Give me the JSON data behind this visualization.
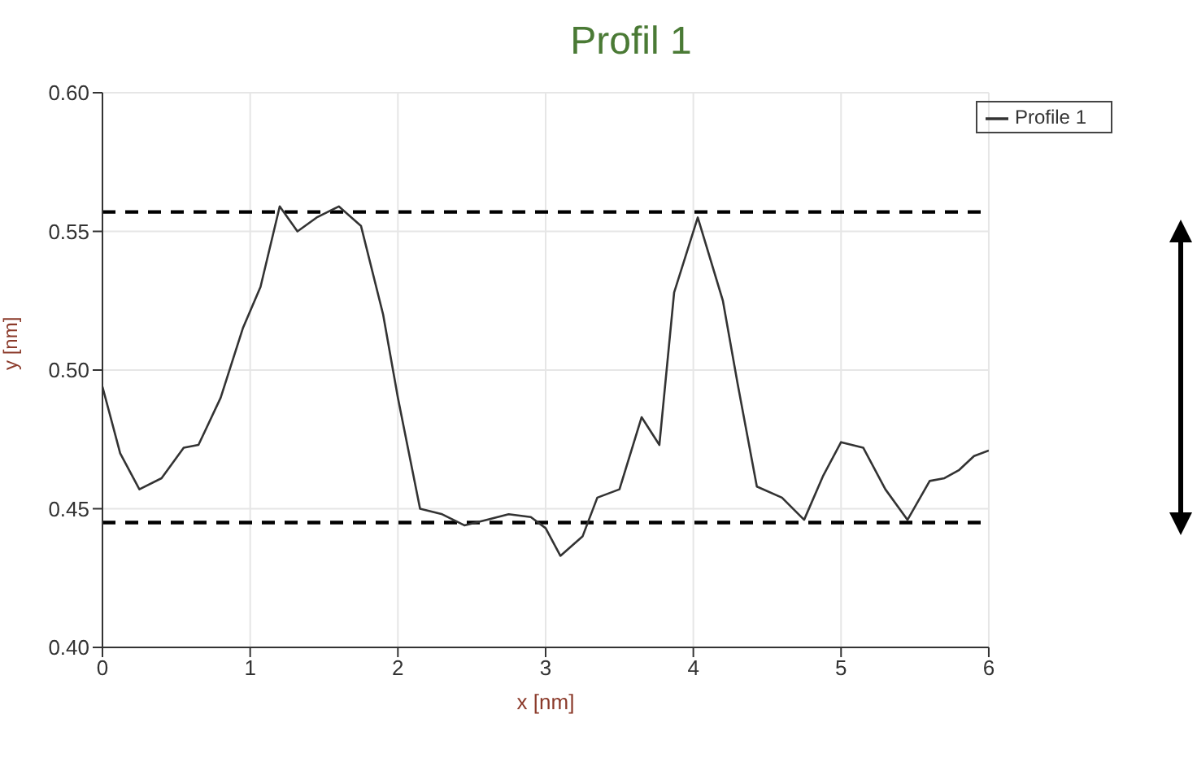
{
  "chart_data": {
    "type": "line",
    "title": "Profil 1",
    "xlabel": "x [nm]",
    "ylabel": "y [nm]",
    "x": [
      0,
      0.12,
      0.25,
      0.4,
      0.55,
      0.65,
      0.8,
      0.95,
      1.07,
      1.2,
      1.32,
      1.45,
      1.6,
      1.75,
      1.9,
      2.0,
      2.15,
      2.3,
      2.45,
      2.6,
      2.75,
      2.9,
      3.0,
      3.1,
      3.25,
      3.35,
      3.5,
      3.65,
      3.77,
      3.87,
      4.03,
      4.2,
      4.3,
      4.43,
      4.6,
      4.75,
      4.88,
      5.0,
      5.15,
      5.3,
      5.45,
      5.6,
      5.7,
      5.8,
      5.9,
      6.0
    ],
    "series": [
      {
        "name": "Profile 1",
        "color": "#333333",
        "values": [
          0.494,
          0.47,
          0.457,
          0.461,
          0.472,
          0.473,
          0.49,
          0.515,
          0.53,
          0.559,
          0.55,
          0.555,
          0.559,
          0.552,
          0.52,
          0.49,
          0.45,
          0.448,
          0.444,
          0.446,
          0.448,
          0.447,
          0.443,
          0.433,
          0.44,
          0.454,
          0.457,
          0.483,
          0.473,
          0.528,
          0.555,
          0.525,
          0.495,
          0.458,
          0.454,
          0.446,
          0.462,
          0.474,
          0.472,
          0.457,
          0.446,
          0.46,
          0.461,
          0.464,
          0.469,
          0.471
        ]
      }
    ],
    "xlim": [
      0,
      6
    ],
    "xticks": [
      0,
      1,
      2,
      3,
      4,
      5,
      6
    ],
    "ylim": [
      0.4,
      0.6
    ],
    "yticks": [
      {
        "value": 0.4,
        "label": "0.40"
      },
      {
        "value": 0.45,
        "label": "0.45"
      },
      {
        "value": 0.5,
        "label": "0.50"
      },
      {
        "value": 0.55,
        "label": "0.55"
      },
      {
        "value": 0.6,
        "label": "0.60"
      }
    ],
    "ref_lines": [
      {
        "axis": "y",
        "value": 0.557,
        "color": "#000000",
        "line_style": "dashed"
      },
      {
        "axis": "y",
        "value": 0.445,
        "color": "#000000",
        "line_style": "dashed"
      }
    ],
    "grid": true,
    "legend": "top right",
    "marker": "none",
    "line_style": "solid"
  }
}
